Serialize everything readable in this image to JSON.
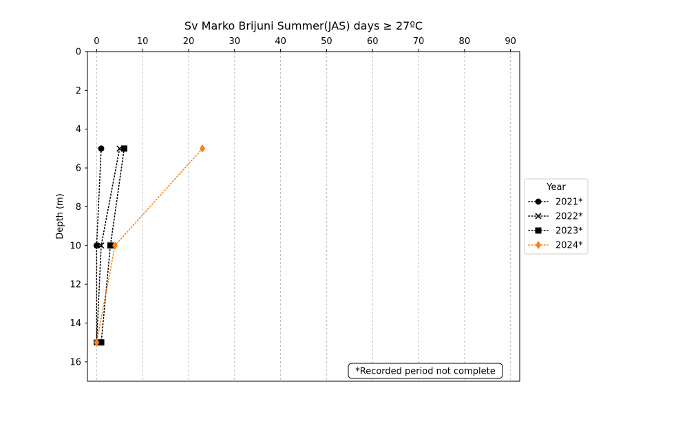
{
  "chart_data": {
    "type": "line",
    "title": "Sv Marko Brijuni Summer(JAS) days ≥ 27ºC",
    "xlabel": "",
    "ylabel": "Depth (m)",
    "xlim": [
      -2,
      92
    ],
    "ylim": [
      17,
      0
    ],
    "x_axis_position": "top",
    "y_inverted": true,
    "xticks": [
      0,
      10,
      20,
      30,
      40,
      50,
      60,
      70,
      80,
      90
    ],
    "yticks": [
      0,
      2,
      4,
      6,
      8,
      10,
      12,
      14,
      16
    ],
    "grid": "vertical dashed",
    "legend": {
      "title": "Year",
      "placement": "outside right"
    },
    "annotation": "*Recorded period not complete",
    "series": [
      {
        "name": "2021*",
        "color": "#000000",
        "marker": "circle",
        "points": [
          {
            "days": 1,
            "depth": 5
          },
          {
            "days": 0,
            "depth": 10
          },
          {
            "days": 0,
            "depth": 15
          }
        ]
      },
      {
        "name": "2022*",
        "color": "#000000",
        "marker": "x",
        "points": [
          {
            "days": 5,
            "depth": 5
          },
          {
            "days": 1,
            "depth": 10
          },
          {
            "days": 0,
            "depth": 15
          }
        ]
      },
      {
        "name": "2023*",
        "color": "#000000",
        "marker": "square",
        "points": [
          {
            "days": 6,
            "depth": 5
          },
          {
            "days": 3,
            "depth": 10
          },
          {
            "days": 1,
            "depth": 15
          }
        ]
      },
      {
        "name": "2024*",
        "color": "#ff7f0e",
        "marker": "diamond",
        "points": [
          {
            "days": 23,
            "depth": 5
          },
          {
            "days": 4,
            "depth": 10
          },
          {
            "days": 0,
            "depth": 15
          }
        ]
      }
    ]
  }
}
